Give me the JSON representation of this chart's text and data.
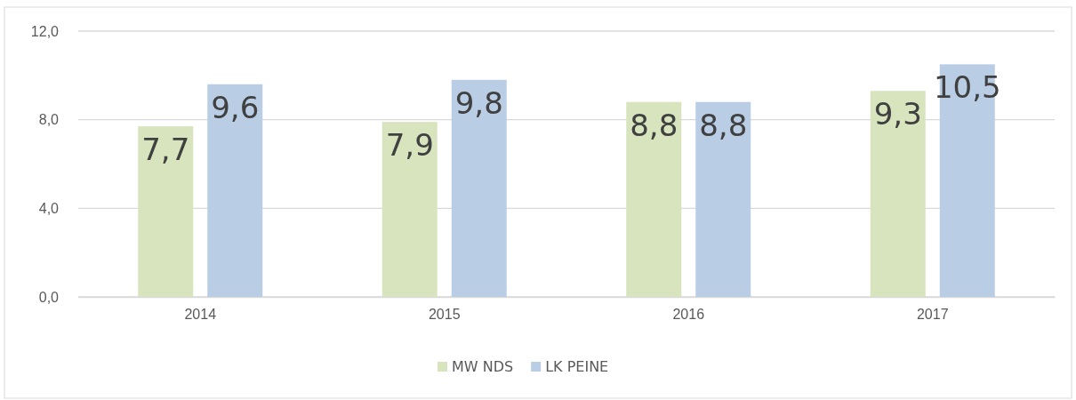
{
  "chart_data": {
    "type": "bar",
    "categories": [
      "2014",
      "2015",
      "2016",
      "2017"
    ],
    "series": [
      {
        "name": "MW NDS",
        "color": "#d7e4bd",
        "values": [
          7.7,
          7.9,
          8.8,
          9.3
        ],
        "value_labels": [
          "7,7",
          "7,9",
          "8,8",
          "9,3"
        ]
      },
      {
        "name": "LK PEINE",
        "color": "#b9cde5",
        "values": [
          9.6,
          9.8,
          8.8,
          10.5
        ],
        "value_labels": [
          "9,6",
          "9,8",
          "8,8",
          "10,5"
        ]
      }
    ],
    "ylim": [
      0,
      12
    ],
    "yticks": [
      {
        "value": 0,
        "label": "0,0"
      },
      {
        "value": 4,
        "label": "4,0"
      },
      {
        "value": 8,
        "label": "8,0"
      },
      {
        "value": 12,
        "label": "12,0"
      }
    ],
    "grid": "y",
    "legend": "bottom"
  }
}
